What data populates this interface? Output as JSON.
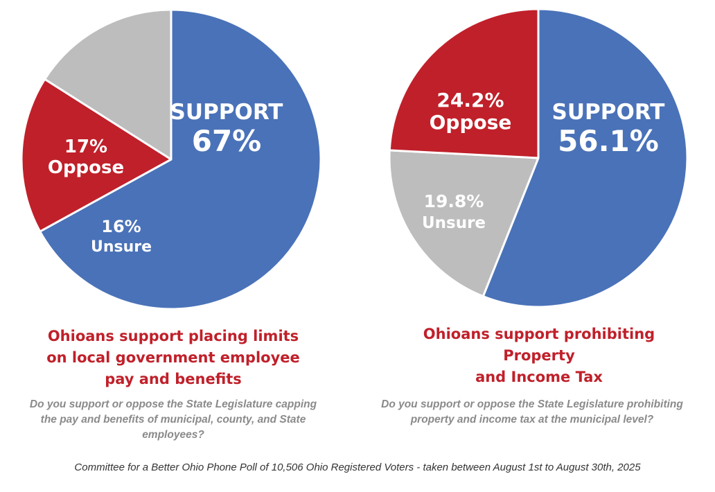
{
  "colors": {
    "support": "#4a72b8",
    "oppose": "#c0202a",
    "unsure": "#bdbdbd",
    "headline": "#c0202a",
    "question": "#8a8a8a"
  },
  "chart_data": [
    {
      "type": "pie",
      "slices": [
        {
          "name": "SUPPORT",
          "value": 67,
          "display": "67%",
          "color": "#4a72b8"
        },
        {
          "name": "Oppose",
          "value": 17,
          "display": "17%",
          "color": "#c0202a"
        },
        {
          "name": "Unsure",
          "value": 16,
          "display": "16%",
          "color": "#bdbdbd"
        }
      ],
      "title_lines": [
        "Ohioans support placing limits",
        "on local government employee",
        "pay and benefits"
      ],
      "question_lines": [
        "Do you support or oppose the State Legislature capping",
        "the pay and benefits of municipal, county, and State",
        "employees?"
      ]
    },
    {
      "type": "pie",
      "slices": [
        {
          "name": "SUPPORT",
          "value": 56.1,
          "display": "56.1%",
          "color": "#4a72b8"
        },
        {
          "name": "Unsure",
          "value": 19.8,
          "display": "19.8%",
          "color": "#bdbdbd"
        },
        {
          "name": "Oppose",
          "value": 24.2,
          "display": "24.2%",
          "color": "#c0202a"
        }
      ],
      "title_lines": [
        "Ohioans support prohibiting",
        "Property",
        "and Income Tax"
      ],
      "question_lines": [
        "Do you support or oppose the State Legislature prohibiting",
        "property and income tax at the municipal level?"
      ]
    }
  ],
  "source": "Committee for a Better Ohio Phone Poll of 10,506 Ohio Registered Voters - taken between August 1st to August 30th, 2025"
}
